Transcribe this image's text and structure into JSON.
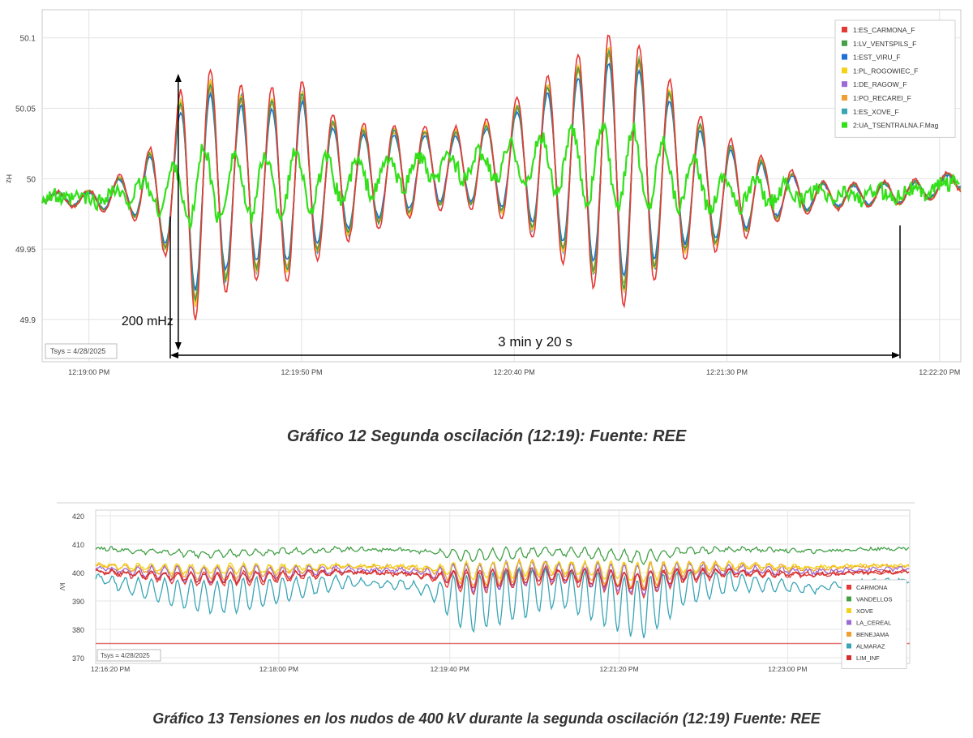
{
  "chart_data": [
    {
      "type": "line",
      "title": "",
      "xlabel": "",
      "ylabel": "Hz",
      "ylim": [
        49.87,
        50.12
      ],
      "xlim_seconds_from_first_tick": [
        -11,
        205
      ],
      "yticks": [
        "50.1",
        "50.05",
        "50",
        "49.95",
        "49.9"
      ],
      "ytick_values": [
        50.1,
        50.05,
        50.0,
        49.95,
        49.9
      ],
      "xticks": [
        "12:19:00 PM",
        "12:19:50 PM",
        "12:20:40 PM",
        "12:21:30 PM",
        "12:22:20 PM"
      ],
      "grid": true,
      "legend_position": "top-right",
      "timestamp_box": "Tsys = 4/28/2025",
      "annotations": {
        "amplitude": "200 mHz",
        "duration": "3 min y 20 s"
      },
      "series": [
        {
          "name": "1:ES_CARMONA_F",
          "color": "#e53935"
        },
        {
          "name": "1:LV_VENTSPILS_F",
          "color": "#43a047"
        },
        {
          "name": "1:EST_VIRU_F",
          "color": "#1e6fd9"
        },
        {
          "name": "1:PL_ROGOWIEC_F",
          "color": "#f2d21b"
        },
        {
          "name": "1:DE_RAGOW_F",
          "color": "#9c6ad6"
        },
        {
          "name": "1:PO_RECAREI_F",
          "color": "#f0a030"
        },
        {
          "name": "1:ES_XOVE_F",
          "color": "#3aa5b5"
        },
        {
          "name": "2:UA_TSENTRALNA.F.Mag",
          "color": "#33e01a"
        }
      ],
      "envelope_points": {
        "t_seconds": [
          -11,
          0,
          10,
          18,
          25,
          30,
          40,
          50,
          55,
          65,
          75,
          85,
          95,
          105,
          115,
          125,
          135,
          140,
          150,
          160,
          170,
          180,
          190,
          200,
          205
        ],
        "center_hz": [
          49.987,
          49.985,
          49.99,
          49.99,
          49.995,
          49.995,
          49.995,
          49.998,
          49.998,
          50.0,
          50.005,
          50.008,
          50.01,
          50.012,
          50.01,
          50.008,
          50.005,
          49.998,
          49.99,
          49.99,
          49.988,
          49.988,
          49.99,
          49.993,
          50.003
        ],
        "amplitude_hz": [
          0.003,
          0.006,
          0.015,
          0.04,
          0.085,
          0.07,
          0.06,
          0.065,
          0.045,
          0.035,
          0.03,
          0.025,
          0.03,
          0.05,
          0.07,
          0.09,
          0.065,
          0.05,
          0.035,
          0.02,
          0.01,
          0.008,
          0.008,
          0.006,
          0.01
        ]
      }
    },
    {
      "type": "line",
      "title": "",
      "xlabel": "",
      "ylabel": "kV",
      "ylim": [
        368,
        422
      ],
      "yticks": [
        "420",
        "410",
        "400",
        "390",
        "380",
        "370"
      ],
      "ytick_values": [
        420,
        410,
        400,
        390,
        380,
        370
      ],
      "xticks": [
        "12:16:20 PM",
        "12:18:00 PM",
        "12:19:40 PM",
        "12:21:20 PM",
        "12:23:00 PM"
      ],
      "grid": true,
      "legend_position": "bottom-right",
      "timestamp_box": "Tsys = 4/28/2025",
      "reference_line": {
        "value": 375,
        "color": "#e57373"
      },
      "series": [
        {
          "name": "CARMONA",
          "color": "#e53935",
          "base": 401,
          "dip": 3.5,
          "osc": 4
        },
        {
          "name": "VANDELLOS",
          "color": "#43a047",
          "base": 409,
          "dip": 2.5,
          "osc": 2
        },
        {
          "name": "XOVE",
          "color": "#f2d21b",
          "base": 403,
          "dip": 2,
          "osc": 3
        },
        {
          "name": "LA_CEREAL",
          "color": "#9c6ad6",
          "base": 402,
          "dip": 3,
          "osc": 5
        },
        {
          "name": "BENEJAMA",
          "color": "#f0a030",
          "base": 403,
          "dip": 3,
          "osc": 4
        },
        {
          "name": "ALMARAZ",
          "color": "#3aa5b5",
          "base": 399,
          "dip": 8,
          "osc": 10
        },
        {
          "name": "LIM_INF",
          "color": "#d32f2f",
          "base": 401,
          "dip": 3,
          "osc": 3
        }
      ]
    }
  ],
  "captions": {
    "figure12": "Gráfico 12 Segunda oscilación (12:19): Fuente: REE",
    "figure13": "Gráfico 13 Tensiones en los nudos de 400 kV durante la segunda oscilación (12:19) Fuente: REE"
  }
}
